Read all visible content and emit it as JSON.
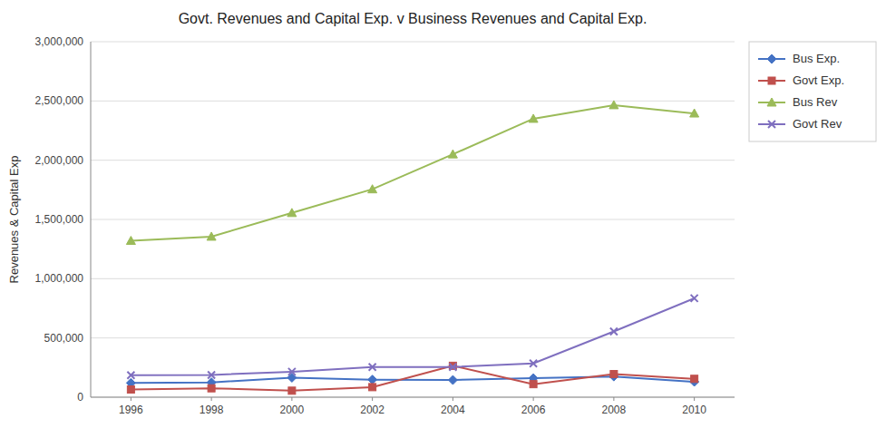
{
  "chart_data": {
    "type": "line",
    "title": "Govt. Revenues and Capital Exp. v Business Revenues and Capital Exp.",
    "y_label": "Revenues & Capital Exp",
    "x": [
      1996,
      1998,
      2000,
      2002,
      2004,
      2006,
      2008,
      2010
    ],
    "xlim": [
      1995,
      2011
    ],
    "xticks": [
      1996,
      1998,
      2000,
      2002,
      2004,
      2006,
      2008,
      2010
    ],
    "ylim": [
      0,
      3000000
    ],
    "yticks": [
      0,
      {
        "value": 500000,
        "label": "500,000"
      },
      {
        "value": 1000000,
        "label": "1,000,000"
      },
      {
        "value": 1500000,
        "label": "1,500,000"
      },
      {
        "value": 2000000,
        "label": "2,000,000"
      },
      {
        "value": 2500000,
        "label": "2,500,000"
      },
      {
        "value": 3000000,
        "label": "3,000,000"
      }
    ],
    "grid": true,
    "legend": "upper right",
    "series": [
      {
        "name": "Bus Exp.",
        "color": "#4472C4",
        "marker": "diamond",
        "values": [
          120000,
          125000,
          165000,
          148000,
          145000,
          160000,
          175000,
          130000
        ]
      },
      {
        "name": "Govt Exp.",
        "color": "#C0504D",
        "marker": "square",
        "values": [
          65000,
          75000,
          55000,
          85000,
          265000,
          110000,
          195000,
          155000
        ]
      },
      {
        "name": "Bus Rev",
        "color": "#9BBB59",
        "marker": "triangle",
        "values": [
          1320000,
          1355000,
          1555000,
          1755000,
          2050000,
          2350000,
          2465000,
          2395000
        ]
      },
      {
        "name": "Govt Rev",
        "color": "#7F6FBF",
        "marker": "x",
        "values": [
          185000,
          188000,
          215000,
          255000,
          255000,
          285000,
          555000,
          835000
        ]
      }
    ]
  }
}
